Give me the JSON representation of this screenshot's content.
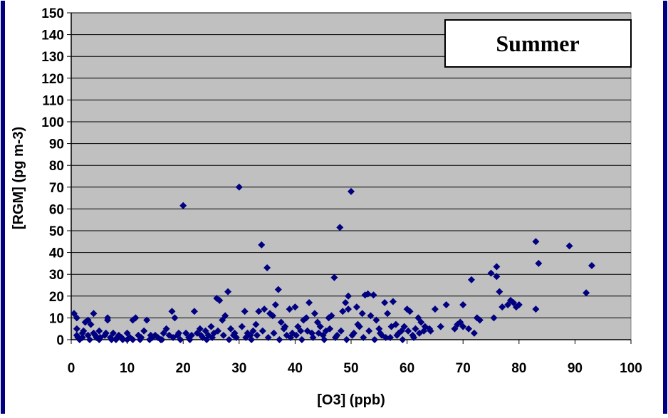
{
  "chart_data": {
    "type": "scatter",
    "title": "",
    "annotation": "Summer",
    "xlabel": "[O3] (ppb)",
    "ylabel": "[RGM] (pg m-3)",
    "xlim": [
      0,
      100
    ],
    "ylim": [
      0,
      150
    ],
    "x_ticks": [
      "0",
      "10",
      "20",
      "30",
      "40",
      "50",
      "60",
      "70",
      "80",
      "90",
      "100"
    ],
    "y_ticks": [
      "0",
      "10",
      "20",
      "30",
      "40",
      "50",
      "60",
      "70",
      "80",
      "90",
      "100",
      "110",
      "120",
      "130",
      "140",
      "150"
    ],
    "grid": true,
    "colors": {
      "plot_background": "#c0c0c0",
      "marker": "#000080",
      "frame": "#000080",
      "gridline": "#000000"
    },
    "series": [
      {
        "marker": "diamond",
        "points": [
          [
            0.5,
            12
          ],
          [
            1,
            10
          ],
          [
            1,
            5
          ],
          [
            1,
            2
          ],
          [
            1.5,
            0
          ],
          [
            2,
            3
          ],
          [
            2,
            1
          ],
          [
            2.5,
            8
          ],
          [
            3,
            2
          ],
          [
            3,
            9
          ],
          [
            3.5,
            7
          ],
          [
            4,
            12
          ],
          [
            4,
            3
          ],
          [
            4.5,
            1
          ],
          [
            5,
            4
          ],
          [
            5,
            0
          ],
          [
            6,
            2
          ],
          [
            6.5,
            9
          ],
          [
            6.5,
            10
          ],
          [
            7,
            1
          ],
          [
            7.5,
            3
          ],
          [
            8,
            0
          ],
          [
            8.5,
            2
          ],
          [
            9,
            1
          ],
          [
            10,
            0
          ],
          [
            10,
            3
          ],
          [
            11,
            0
          ],
          [
            11,
            9
          ],
          [
            11.5,
            10
          ],
          [
            12,
            2
          ],
          [
            12.5,
            1
          ],
          [
            13,
            4
          ],
          [
            13.5,
            9
          ],
          [
            14,
            0
          ],
          [
            14.5,
            1
          ],
          [
            15,
            2
          ],
          [
            16,
            0
          ],
          [
            16.5,
            3
          ],
          [
            17,
            5
          ],
          [
            17.5,
            2
          ],
          [
            18,
            13
          ],
          [
            18.5,
            10
          ],
          [
            19,
            2
          ],
          [
            19.5,
            0
          ],
          [
            20,
            61.5
          ],
          [
            20.5,
            3
          ],
          [
            21,
            1
          ],
          [
            21.5,
            2
          ],
          [
            22,
            13
          ],
          [
            22.5,
            3
          ],
          [
            23,
            5
          ],
          [
            23.5,
            1
          ],
          [
            24,
            4
          ],
          [
            24.5,
            2
          ],
          [
            25,
            6
          ],
          [
            25.5,
            3
          ],
          [
            26,
            19
          ],
          [
            26.5,
            18
          ],
          [
            27,
            9
          ],
          [
            27.5,
            11
          ],
          [
            28,
            22
          ],
          [
            28.5,
            5
          ],
          [
            29,
            2
          ],
          [
            29.5,
            1
          ],
          [
            30,
            70
          ],
          [
            30.5,
            6
          ],
          [
            31,
            13
          ],
          [
            31.5,
            3
          ],
          [
            32,
            2
          ],
          [
            32.5,
            4
          ],
          [
            33,
            7
          ],
          [
            33.5,
            13
          ],
          [
            34,
            43.5
          ],
          [
            34.5,
            14
          ],
          [
            35,
            33
          ],
          [
            35.5,
            12
          ],
          [
            36,
            11
          ],
          [
            36.5,
            16
          ],
          [
            37,
            23
          ],
          [
            37.5,
            8
          ],
          [
            38,
            5
          ],
          [
            38.5,
            2
          ],
          [
            39,
            14
          ],
          [
            39.5,
            3
          ],
          [
            40,
            15
          ],
          [
            40.5,
            6
          ],
          [
            41,
            4
          ],
          [
            41.5,
            9
          ],
          [
            42,
            10
          ],
          [
            42.5,
            17
          ],
          [
            43,
            3
          ],
          [
            43.5,
            12
          ],
          [
            44,
            8
          ],
          [
            44.5,
            6
          ],
          [
            45,
            2
          ],
          [
            45.5,
            4
          ],
          [
            46,
            10
          ],
          [
            46.5,
            11
          ],
          [
            47,
            28.5
          ],
          [
            47.5,
            2
          ],
          [
            48,
            51.5
          ],
          [
            48.5,
            13
          ],
          [
            49,
            17
          ],
          [
            49.5,
            20
          ],
          [
            49.5,
            14
          ],
          [
            50,
            68
          ],
          [
            50.5,
            3
          ],
          [
            51,
            15
          ],
          [
            51.5,
            6
          ],
          [
            52,
            12
          ],
          [
            52.5,
            20.5
          ],
          [
            53,
            21
          ],
          [
            53.5,
            11
          ],
          [
            54,
            20.5
          ],
          [
            54.5,
            9
          ],
          [
            55,
            5
          ],
          [
            55.5,
            2
          ],
          [
            56,
            17
          ],
          [
            56.5,
            12
          ],
          [
            57,
            1
          ],
          [
            57.5,
            17.5
          ],
          [
            58,
            7
          ],
          [
            58.5,
            3
          ],
          [
            59,
            4
          ],
          [
            59.5,
            6
          ],
          [
            60,
            14
          ],
          [
            60.5,
            13
          ],
          [
            61,
            2
          ],
          [
            61.5,
            5
          ],
          [
            62,
            10
          ],
          [
            62.5,
            8
          ],
          [
            63,
            4
          ],
          [
            64,
            5
          ],
          [
            65,
            14
          ],
          [
            66,
            6
          ],
          [
            67,
            16
          ],
          [
            69,
            7
          ],
          [
            70,
            16
          ],
          [
            70,
            6
          ],
          [
            71,
            5
          ],
          [
            71.5,
            27.5
          ],
          [
            72,
            3
          ],
          [
            72.5,
            10
          ],
          [
            75,
            30.5
          ],
          [
            75.5,
            10
          ],
          [
            76,
            33.5
          ],
          [
            76,
            29
          ],
          [
            76.5,
            22
          ],
          [
            77,
            15
          ],
          [
            78,
            16
          ],
          [
            78.5,
            18
          ],
          [
            79,
            17
          ],
          [
            79.5,
            15
          ],
          [
            80,
            16
          ],
          [
            83,
            45
          ],
          [
            83,
            14
          ],
          [
            83.5,
            35
          ],
          [
            89,
            43
          ],
          [
            92,
            21.5
          ],
          [
            93,
            34
          ],
          [
            1.2,
            1
          ],
          [
            2.2,
            4
          ],
          [
            3.3,
            0
          ],
          [
            4.3,
            2
          ],
          [
            5.2,
            1
          ],
          [
            6.2,
            3
          ],
          [
            7.2,
            0
          ],
          [
            8.2,
            1
          ],
          [
            9.2,
            0
          ],
          [
            10.5,
            1
          ],
          [
            12.3,
            0
          ],
          [
            14.2,
            2
          ],
          [
            15.5,
            1
          ],
          [
            16.2,
            0
          ],
          [
            18.2,
            1
          ],
          [
            19.2,
            3
          ],
          [
            21.2,
            0
          ],
          [
            23.2,
            2
          ],
          [
            24.2,
            0
          ],
          [
            25.2,
            1
          ],
          [
            26.2,
            4
          ],
          [
            27.2,
            2
          ],
          [
            28.2,
            0
          ],
          [
            29.2,
            3
          ],
          [
            31.2,
            1
          ],
          [
            32.2,
            0
          ],
          [
            33.2,
            2
          ],
          [
            34.2,
            4
          ],
          [
            35.2,
            1
          ],
          [
            36.2,
            3
          ],
          [
            37.2,
            0
          ],
          [
            38.2,
            6
          ],
          [
            39.2,
            1
          ],
          [
            40.2,
            2
          ],
          [
            41.2,
            0
          ],
          [
            42.2,
            4
          ],
          [
            43.2,
            1
          ],
          [
            44.2,
            3
          ],
          [
            45.2,
            0
          ],
          [
            46.2,
            5
          ],
          [
            47.2,
            1
          ],
          [
            48.2,
            4
          ],
          [
            49.2,
            0
          ],
          [
            50.2,
            2
          ],
          [
            51.2,
            7
          ],
          [
            52.2,
            1
          ],
          [
            53.2,
            4
          ],
          [
            54.2,
            0
          ],
          [
            55.2,
            3
          ],
          [
            56.2,
            1
          ],
          [
            57.2,
            6
          ],
          [
            58.2,
            2
          ],
          [
            59.2,
            0
          ],
          [
            60.2,
            4
          ],
          [
            61.2,
            1
          ],
          [
            62.2,
            3
          ],
          [
            63.2,
            6
          ],
          [
            64.2,
            4
          ],
          [
            68.5,
            5
          ],
          [
            69.5,
            8
          ],
          [
            73,
            9
          ]
        ]
      }
    ]
  }
}
